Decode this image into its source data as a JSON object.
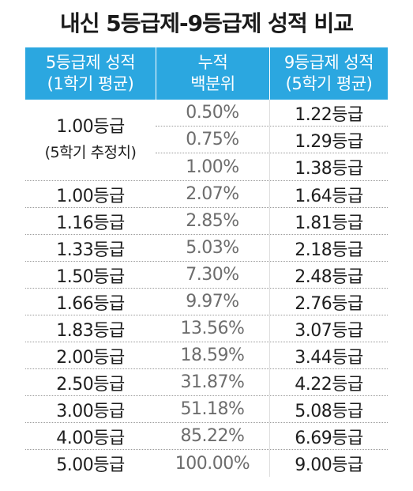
{
  "title": "내신 5등급제-9등급제 성적 비교",
  "header": {
    "col1_line1": "5등급제 성적",
    "col1_line2": "(1학기 평균)",
    "col2_line1": "누적",
    "col2_line2": "백분위",
    "col3_line1": "9등급제 성적",
    "col3_line2": "(5학기 평균)"
  },
  "group": {
    "label": "1.00등급",
    "note": "(5학기 추정치)",
    "rows": [
      {
        "pct": "0.50%",
        "grade9": "1.22등급"
      },
      {
        "pct": "0.75%",
        "grade9": "1.29등급"
      },
      {
        "pct": "1.00%",
        "grade9": "1.38등급"
      }
    ]
  },
  "rows": [
    {
      "grade5": "1.00등급",
      "pct": "2.07%",
      "grade9": "1.64등급"
    },
    {
      "grade5": "1.16등급",
      "pct": "2.85%",
      "grade9": "1.81등급"
    },
    {
      "grade5": "1.33등급",
      "pct": "5.03%",
      "grade9": "2.18등급"
    },
    {
      "grade5": "1.50등급",
      "pct": "7.30%",
      "grade9": "2.48등급"
    },
    {
      "grade5": "1.66등급",
      "pct": "9.97%",
      "grade9": "2.76등급"
    },
    {
      "grade5": "1.83등급",
      "pct": "13.56%",
      "grade9": "3.07등급"
    },
    {
      "grade5": "2.00등급",
      "pct": "18.59%",
      "grade9": "3.44등급"
    },
    {
      "grade5": "2.50등급",
      "pct": "31.87%",
      "grade9": "4.22등급"
    },
    {
      "grade5": "3.00등급",
      "pct": "51.18%",
      "grade9": "5.08등급"
    },
    {
      "grade5": "4.00등급",
      "pct": "85.22%",
      "grade9": "6.69등급"
    },
    {
      "grade5": "5.00등급",
      "pct": "100.00%",
      "grade9": "9.00등급"
    }
  ],
  "colors": {
    "header_bg": "#2ba7e0",
    "header_text": "#ffffff",
    "pct_text": "#6d6d6d"
  }
}
